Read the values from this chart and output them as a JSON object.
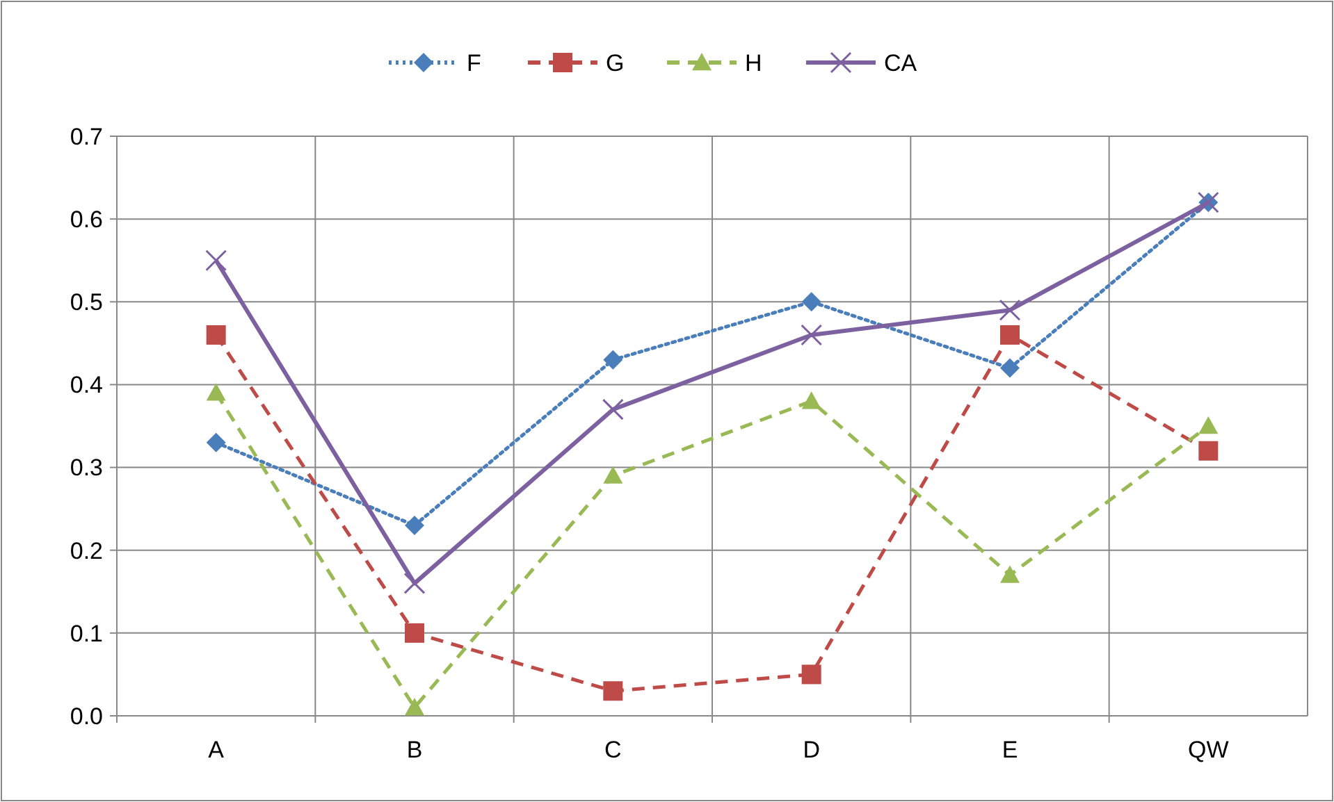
{
  "chart_data": {
    "type": "line",
    "categories": [
      "A",
      "B",
      "C",
      "D",
      "E",
      "QW"
    ],
    "series": [
      {
        "name": "F",
        "color": "#4a7ebb",
        "marker": "diamond",
        "line_style": "dotted",
        "values": [
          0.33,
          0.23,
          0.43,
          0.5,
          0.42,
          0.62
        ]
      },
      {
        "name": "G",
        "color": "#be4b48",
        "marker": "square",
        "line_style": "dashed",
        "values": [
          0.46,
          0.1,
          0.03,
          0.05,
          0.46,
          0.32
        ]
      },
      {
        "name": "H",
        "color": "#98b954",
        "marker": "triangle",
        "line_style": "dashed",
        "values": [
          0.39,
          0.01,
          0.29,
          0.38,
          0.17,
          0.35
        ]
      },
      {
        "name": "CA",
        "color": "#7d60a0",
        "marker": "cross",
        "line_style": "solid",
        "values": [
          0.55,
          0.16,
          0.37,
          0.46,
          0.49,
          0.62
        ]
      }
    ],
    "ylim": [
      0,
      0.7
    ],
    "yticks": [
      {
        "value": 0,
        "label": "0.0"
      },
      0.1,
      0.2,
      0.3,
      0.4,
      0.5,
      0.6,
      0.7
    ],
    "grid": true,
    "legend": "top"
  }
}
